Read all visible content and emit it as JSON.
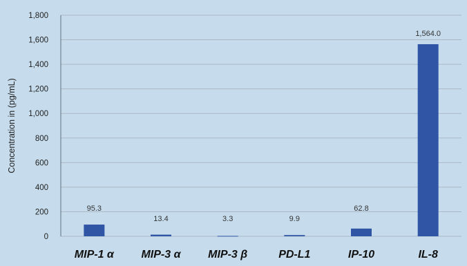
{
  "chart_data": {
    "type": "bar",
    "title": "",
    "xlabel": "",
    "ylabel": "Concentration in (pg/mL)",
    "categories": [
      "MIP-1 α",
      "MIP-3 α",
      "MIP-3 β",
      "PD-L1",
      "IP-10",
      "IL-8"
    ],
    "values": [
      95.3,
      13.4,
      3.3,
      9.9,
      62.8,
      1564.0
    ],
    "value_labels": [
      "95.3",
      "13.4",
      "3.3",
      "9.9",
      "62.8",
      "1,564.0"
    ],
    "ylim": [
      0,
      1800
    ],
    "yticks": [
      0,
      200,
      400,
      600,
      800,
      1000,
      1200,
      1400,
      1600,
      1800
    ],
    "ytick_labels": [
      "0",
      "200",
      "400",
      "600",
      "800",
      "1,000",
      "1,200",
      "1,400",
      "1,600",
      "1,800"
    ],
    "grid": true,
    "legend": "none",
    "colors": {
      "bar": "#2f55a4",
      "background": "#c6dcec",
      "grid": "#aab8c6"
    }
  }
}
